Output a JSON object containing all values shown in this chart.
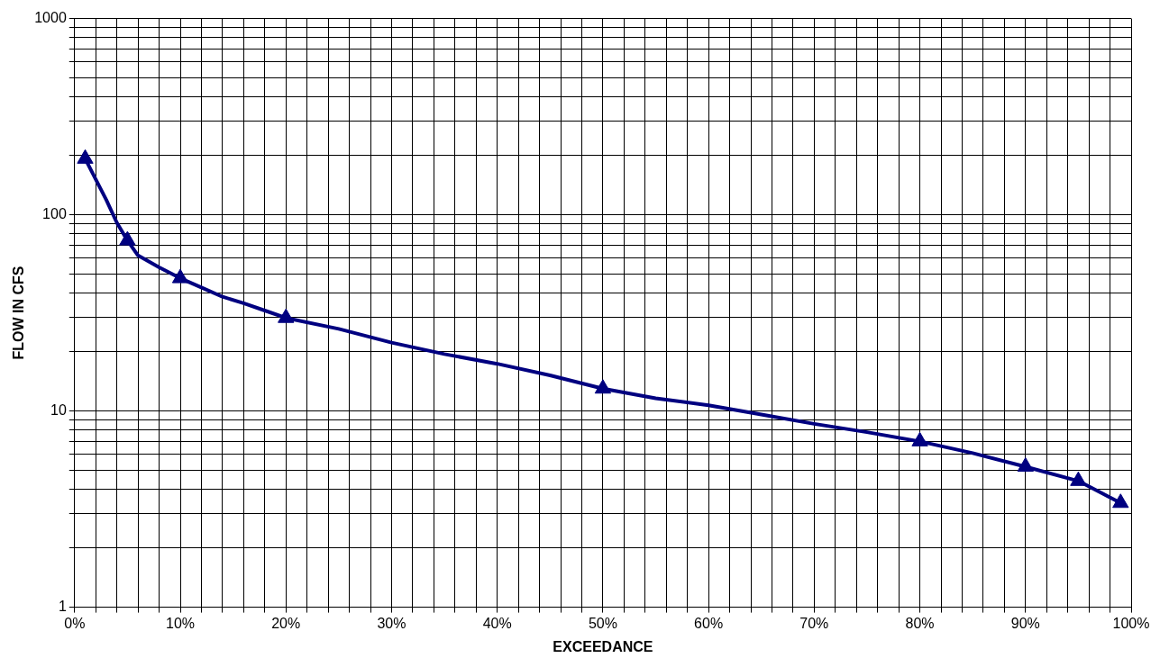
{
  "chart_data": {
    "type": "line",
    "xlabel": "EXCEEDANCE",
    "ylabel": "FLOW IN CFS",
    "log": "y",
    "grid": true,
    "legend": false,
    "line_style": "solid",
    "xlim": [
      0,
      100
    ],
    "ylim": [
      1,
      1000
    ],
    "xticks": [
      {
        "value": 0,
        "label": "0%"
      },
      {
        "value": 2,
        "label": null
      },
      {
        "value": 4,
        "label": null
      },
      {
        "value": 6,
        "label": null
      },
      {
        "value": 8,
        "label": null
      },
      {
        "value": 10,
        "label": "10%"
      },
      {
        "value": 12,
        "label": null
      },
      {
        "value": 14,
        "label": null
      },
      {
        "value": 16,
        "label": null
      },
      {
        "value": 18,
        "label": null
      },
      {
        "value": 20,
        "label": "20%"
      },
      {
        "value": 22,
        "label": null
      },
      {
        "value": 24,
        "label": null
      },
      {
        "value": 26,
        "label": null
      },
      {
        "value": 28,
        "label": null
      },
      {
        "value": 30,
        "label": "30%"
      },
      {
        "value": 32,
        "label": null
      },
      {
        "value": 34,
        "label": null
      },
      {
        "value": 36,
        "label": null
      },
      {
        "value": 38,
        "label": null
      },
      {
        "value": 40,
        "label": "40%"
      },
      {
        "value": 42,
        "label": null
      },
      {
        "value": 44,
        "label": null
      },
      {
        "value": 46,
        "label": null
      },
      {
        "value": 48,
        "label": null
      },
      {
        "value": 50,
        "label": "50%"
      },
      {
        "value": 52,
        "label": null
      },
      {
        "value": 54,
        "label": null
      },
      {
        "value": 56,
        "label": null
      },
      {
        "value": 58,
        "label": null
      },
      {
        "value": 60,
        "label": "60%"
      },
      {
        "value": 62,
        "label": null
      },
      {
        "value": 64,
        "label": null
      },
      {
        "value": 66,
        "label": null
      },
      {
        "value": 68,
        "label": null
      },
      {
        "value": 70,
        "label": "70%"
      },
      {
        "value": 72,
        "label": null
      },
      {
        "value": 74,
        "label": null
      },
      {
        "value": 76,
        "label": null
      },
      {
        "value": 78,
        "label": null
      },
      {
        "value": 80,
        "label": "80%"
      },
      {
        "value": 82,
        "label": null
      },
      {
        "value": 84,
        "label": null
      },
      {
        "value": 86,
        "label": null
      },
      {
        "value": 88,
        "label": null
      },
      {
        "value": 90,
        "label": "90%"
      },
      {
        "value": 92,
        "label": null
      },
      {
        "value": 94,
        "label": null
      },
      {
        "value": 96,
        "label": null
      },
      {
        "value": 98,
        "label": null
      },
      {
        "value": 100,
        "label": "100%"
      }
    ],
    "yticks": [
      1,
      {
        "value": 2,
        "label": null
      },
      {
        "value": 3,
        "label": null
      },
      {
        "value": 4,
        "label": null
      },
      {
        "value": 5,
        "label": null
      },
      {
        "value": 6,
        "label": null
      },
      {
        "value": 7,
        "label": null
      },
      {
        "value": 8,
        "label": null
      },
      {
        "value": 9,
        "label": null
      },
      10,
      {
        "value": 20,
        "label": null
      },
      {
        "value": 30,
        "label": null
      },
      {
        "value": 40,
        "label": null
      },
      {
        "value": 50,
        "label": null
      },
      {
        "value": 60,
        "label": null
      },
      {
        "value": 70,
        "label": null
      },
      {
        "value": 80,
        "label": null
      },
      {
        "value": 90,
        "label": null
      },
      100,
      {
        "value": 200,
        "label": null
      },
      {
        "value": 300,
        "label": null
      },
      {
        "value": 400,
        "label": null
      },
      {
        "value": 500,
        "label": null
      },
      {
        "value": 600,
        "label": null
      },
      {
        "value": 700,
        "label": null
      },
      {
        "value": 800,
        "label": null
      },
      {
        "value": 900,
        "label": null
      },
      1000
    ],
    "series": [
      {
        "color": "#000080",
        "marker": "none",
        "x": [
          1,
          3,
          4,
          5,
          6,
          8,
          10,
          12,
          14,
          16,
          18,
          20,
          25,
          30,
          35,
          40,
          45,
          50,
          55,
          60,
          65,
          70,
          75,
          80,
          85,
          90,
          95,
          99
        ],
        "values": [
          193,
          119,
          91,
          74,
          62,
          54,
          47.5,
          42.6,
          38.2,
          35.4,
          32.5,
          29.8,
          26.2,
          22.3,
          19.5,
          17.4,
          15.2,
          13,
          11.6,
          10.7,
          9.6,
          8.6,
          7.8,
          7,
          6.1,
          5.2,
          4.4,
          3.4
        ]
      },
      {
        "type": "scatter",
        "color": "#000080",
        "marker": "triangle",
        "x": [
          1,
          5,
          10,
          20,
          50,
          80,
          90,
          95,
          99
        ],
        "values": [
          193,
          74,
          47.5,
          29.8,
          13,
          7,
          5.2,
          4.4,
          3.4
        ]
      }
    ]
  }
}
